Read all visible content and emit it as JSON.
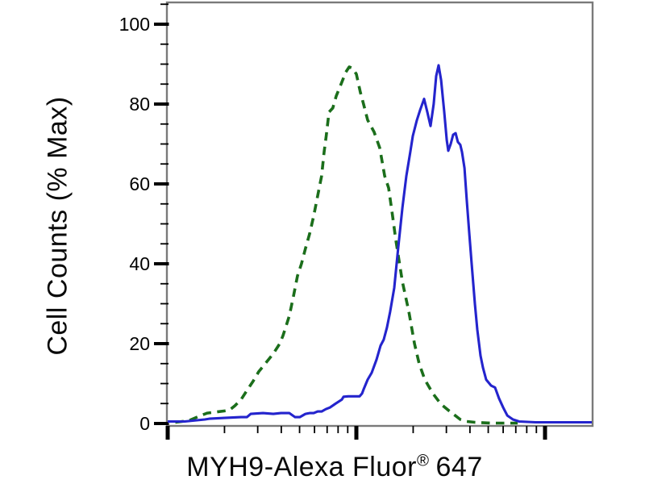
{
  "chart_data": {
    "type": "line",
    "subtype": "flow-cytometry-histogram-overlay",
    "title": "",
    "xlabel": "MYH9-Alexa Fluor® 647",
    "ylabel": "Cell Counts (% Max)",
    "grid": false,
    "legend": false,
    "x_axis": {
      "scale": "log10",
      "tick_labels_visible": false,
      "decades_shown": 2.25,
      "major_tick_decades": [
        0,
        1,
        2
      ],
      "minor_tick_subdivisions": [
        2,
        3,
        4,
        5,
        6,
        7,
        8,
        9
      ]
    },
    "y_axis": {
      "min": 0,
      "max": 105,
      "major_ticks": [
        0,
        20,
        40,
        60,
        80,
        100
      ],
      "minor_tick_step": 5
    },
    "series": [
      {
        "name": "green-dashed-control",
        "style": "dashed",
        "color": "#1b6e1b",
        "stroke_width": 3.6,
        "peak": {
          "x_log10": 0.96,
          "y_pct": 89.3
        },
        "points": [
          [
            0.04,
            0.3
          ],
          [
            0.111,
            0.7
          ],
          [
            0.175,
            2.0
          ],
          [
            0.21,
            2.6
          ],
          [
            0.261,
            2.9
          ],
          [
            0.325,
            3.3
          ],
          [
            0.355,
            4.4
          ],
          [
            0.389,
            6.0
          ],
          [
            0.423,
            8.5
          ],
          [
            0.453,
            10.6
          ],
          [
            0.483,
            13
          ],
          [
            0.517,
            15
          ],
          [
            0.56,
            17.5
          ],
          [
            0.594,
            20
          ],
          [
            0.611,
            22
          ],
          [
            0.628,
            24.5
          ],
          [
            0.645,
            27
          ],
          [
            0.667,
            32
          ],
          [
            0.688,
            37
          ],
          [
            0.709,
            40
          ],
          [
            0.731,
            44
          ],
          [
            0.752,
            47.5
          ],
          [
            0.774,
            52
          ],
          [
            0.795,
            57
          ],
          [
            0.816,
            62
          ],
          [
            0.829,
            68
          ],
          [
            0.84,
            72
          ],
          [
            0.855,
            78
          ],
          [
            0.875,
            79
          ],
          [
            0.893,
            82
          ],
          [
            0.923,
            85.5
          ],
          [
            0.944,
            88
          ],
          [
            0.962,
            89.3
          ],
          [
            0.979,
            89
          ],
          [
            1.0,
            87.5
          ],
          [
            1.021,
            83
          ],
          [
            1.038,
            80
          ],
          [
            1.06,
            76
          ],
          [
            1.094,
            73
          ],
          [
            1.124,
            69
          ],
          [
            1.15,
            62
          ],
          [
            1.171,
            59
          ],
          [
            1.192,
            52
          ],
          [
            1.209,
            46
          ],
          [
            1.244,
            35.5
          ],
          [
            1.278,
            28
          ],
          [
            1.308,
            20
          ],
          [
            1.333,
            15
          ],
          [
            1.363,
            11
          ],
          [
            1.406,
            7.5
          ],
          [
            1.449,
            4.8
          ],
          [
            1.491,
            3.2
          ],
          [
            1.551,
            1.0
          ],
          [
            1.585,
            0.5
          ],
          [
            1.628,
            0.3
          ],
          [
            1.714,
            0.1
          ],
          [
            1.778,
            0.1
          ],
          [
            1.855,
            0.1
          ]
        ]
      },
      {
        "name": "blue-solid-stained",
        "style": "solid",
        "color": "#2424cd",
        "stroke_width": 3.1,
        "peak": {
          "x_log10": 1.436,
          "y_pct": 89.7
        },
        "points": [
          [
            0.0,
            0.5
          ],
          [
            0.09,
            0.5
          ],
          [
            0.197,
            1.0
          ],
          [
            0.22,
            1.2
          ],
          [
            0.3,
            1.4
          ],
          [
            0.389,
            1.6
          ],
          [
            0.42,
            1.6
          ],
          [
            0.44,
            2.4
          ],
          [
            0.505,
            2.6
          ],
          [
            0.56,
            2.4
          ],
          [
            0.6,
            2.6
          ],
          [
            0.645,
            2.6
          ],
          [
            0.675,
            1.6
          ],
          [
            0.7,
            1.6
          ],
          [
            0.73,
            2.4
          ],
          [
            0.752,
            2.6
          ],
          [
            0.774,
            2.6
          ],
          [
            0.795,
            3.0
          ],
          [
            0.816,
            3.0
          ],
          [
            0.838,
            3.6
          ],
          [
            0.86,
            4.0
          ],
          [
            0.89,
            5.0
          ],
          [
            0.923,
            6.0
          ],
          [
            0.932,
            6.7
          ],
          [
            0.957,
            6.8
          ],
          [
            1.017,
            6.8
          ],
          [
            1.03,
            7.5
          ],
          [
            1.038,
            8.5
          ],
          [
            1.06,
            11
          ],
          [
            1.081,
            12.7
          ],
          [
            1.107,
            16
          ],
          [
            1.128,
            19.5
          ],
          [
            1.145,
            21
          ],
          [
            1.162,
            24
          ],
          [
            1.179,
            28
          ],
          [
            1.201,
            34
          ],
          [
            1.222,
            44
          ],
          [
            1.244,
            54
          ],
          [
            1.265,
            62
          ],
          [
            1.286,
            68
          ],
          [
            1.299,
            72
          ],
          [
            1.321,
            76
          ],
          [
            1.338,
            78.5
          ],
          [
            1.359,
            81.3
          ],
          [
            1.376,
            78
          ],
          [
            1.393,
            74.5
          ],
          [
            1.41,
            80
          ],
          [
            1.423,
            87
          ],
          [
            1.436,
            89.7
          ],
          [
            1.449,
            86
          ],
          [
            1.466,
            78
          ],
          [
            1.479,
            71
          ],
          [
            1.487,
            68.3
          ],
          [
            1.5,
            70
          ],
          [
            1.513,
            72.3
          ],
          [
            1.526,
            72.7
          ],
          [
            1.538,
            70.5
          ],
          [
            1.551,
            69.8
          ],
          [
            1.56,
            68
          ],
          [
            1.573,
            64
          ],
          [
            1.585,
            56
          ],
          [
            1.598,
            48
          ],
          [
            1.611,
            40
          ],
          [
            1.628,
            30
          ],
          [
            1.641,
            23.5
          ],
          [
            1.658,
            17
          ],
          [
            1.671,
            14
          ],
          [
            1.688,
            11
          ],
          [
            1.714,
            9.5
          ],
          [
            1.735,
            9
          ],
          [
            1.756,
            6.3
          ],
          [
            1.778,
            4
          ],
          [
            1.8,
            2
          ],
          [
            1.83,
            1
          ],
          [
            1.863,
            0.5
          ],
          [
            1.95,
            0.3
          ],
          [
            2.05,
            0.3
          ],
          [
            2.248,
            0.3
          ]
        ]
      }
    ],
    "frame_color": "#7a7a7a",
    "tick_color": "#000000"
  },
  "labels": {
    "ylabel": "Cell Counts (% Max)",
    "xlabel_main": "MYH9-Alexa Fluor",
    "xlabel_reg": "®",
    "xlabel_num": "647"
  }
}
